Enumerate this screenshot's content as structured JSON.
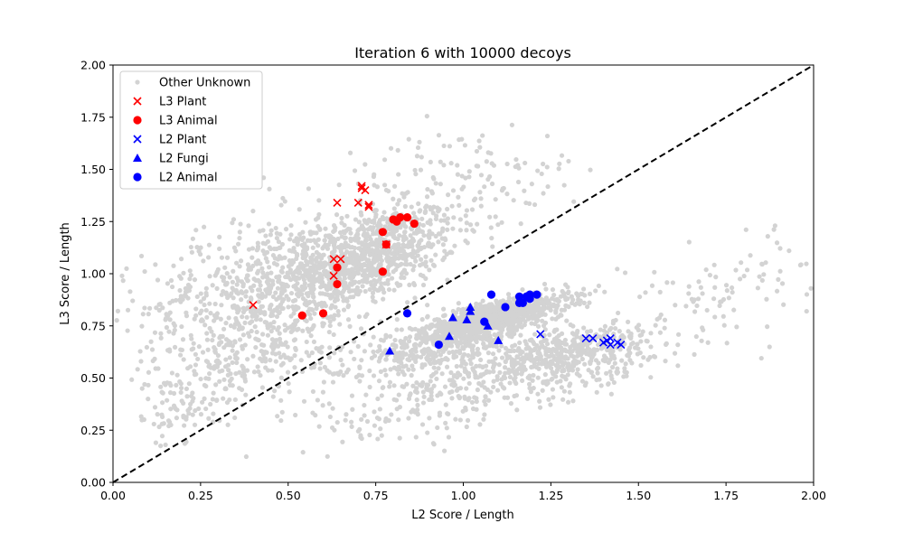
{
  "chart_data": {
    "type": "scatter",
    "title": "Iteration 6 with 10000 decoys",
    "xlabel": "L2 Score / Length",
    "ylabel": "L3 Score / Length",
    "xlim": [
      0,
      2
    ],
    "ylim": [
      0,
      2
    ],
    "xticks": [
      "0.00",
      "0.25",
      "0.50",
      "0.75",
      "1.00",
      "1.25",
      "1.50",
      "1.75",
      "2.00"
    ],
    "yticks": [
      "0.00",
      "0.25",
      "0.50",
      "0.75",
      "1.00",
      "1.25",
      "1.50",
      "1.75",
      "2.00"
    ],
    "grid": false,
    "legend_position": "top-left",
    "reference_line": {
      "style": "dashed",
      "color": "#000000",
      "from": [
        0,
        0
      ],
      "to": [
        2,
        2
      ]
    },
    "series": [
      {
        "name": "Other Unknown",
        "marker": "circle-small",
        "color": "#d3d3d3",
        "clusters": [
          {
            "center": [
              0.72,
              1.08
            ],
            "spread": [
              0.13,
              0.12
            ],
            "count": 900,
            "corr": 0.5
          },
          {
            "center": [
              0.45,
              0.95
            ],
            "spread": [
              0.18,
              0.17
            ],
            "count": 600,
            "corr": 0.35
          },
          {
            "center": [
              0.38,
              0.62
            ],
            "spread": [
              0.15,
              0.15
            ],
            "count": 300,
            "corr": 0.4
          },
          {
            "center": [
              0.2,
              0.35
            ],
            "spread": [
              0.06,
              0.08
            ],
            "count": 50,
            "corr": 0.5
          },
          {
            "center": [
              1.1,
              0.8
            ],
            "spread": [
              0.1,
              0.05
            ],
            "count": 900,
            "corr": 0.7
          },
          {
            "center": [
              0.95,
              0.67
            ],
            "spread": [
              0.12,
              0.06
            ],
            "count": 400,
            "corr": 0.6
          },
          {
            "center": [
              1.3,
              0.62
            ],
            "spread": [
              0.12,
              0.07
            ],
            "count": 450,
            "corr": 0.4
          },
          {
            "center": [
              1.05,
              0.5
            ],
            "spread": [
              0.2,
              0.09
            ],
            "count": 280,
            "corr": 0.3
          },
          {
            "center": [
              1.75,
              0.9
            ],
            "spread": [
              0.17,
              0.14
            ],
            "count": 100,
            "corr": 0.5
          },
          {
            "center": [
              1.0,
              1.45
            ],
            "spread": [
              0.18,
              0.12
            ],
            "count": 120,
            "corr": 0.2
          },
          {
            "center": [
              0.85,
              0.32
            ],
            "spread": [
              0.18,
              0.08
            ],
            "count": 90,
            "corr": 0.2
          }
        ],
        "points": [
          [
            0.08,
            0.58
          ],
          [
            0.1,
            0.4
          ],
          [
            0.12,
            0.36
          ],
          [
            0.14,
            0.28
          ],
          [
            0.15,
            0.18
          ],
          [
            1.98,
            0.82
          ],
          [
            1.93,
            1.11
          ],
          [
            1.89,
            1.23
          ],
          [
            1.5,
            0.73
          ],
          [
            1.52,
            0.91
          ],
          [
            0.43,
            1.46
          ],
          [
            1.24,
            1.66
          ]
        ]
      },
      {
        "name": "L3 Plant",
        "marker": "x",
        "color": "#ff0000",
        "points": [
          [
            0.4,
            0.85
          ],
          [
            0.63,
            0.99
          ],
          [
            0.63,
            1.07
          ],
          [
            0.65,
            1.07
          ],
          [
            0.64,
            1.34
          ],
          [
            0.7,
            1.34
          ],
          [
            0.71,
            1.41
          ],
          [
            0.71,
            1.42
          ],
          [
            0.72,
            1.4
          ],
          [
            0.73,
            1.32
          ],
          [
            0.73,
            1.33
          ],
          [
            0.78,
            1.14
          ]
        ]
      },
      {
        "name": "L3 Animal",
        "marker": "circle",
        "color": "#ff0000",
        "points": [
          [
            0.54,
            0.8
          ],
          [
            0.6,
            0.81
          ],
          [
            0.64,
            0.95
          ],
          [
            0.64,
            1.03
          ],
          [
            0.77,
            1.01
          ],
          [
            0.77,
            1.2
          ],
          [
            0.78,
            1.14
          ],
          [
            0.8,
            1.26
          ],
          [
            0.81,
            1.25
          ],
          [
            0.82,
            1.27
          ],
          [
            0.84,
            1.27
          ],
          [
            0.86,
            1.24
          ]
        ]
      },
      {
        "name": "L2 Plant",
        "marker": "x",
        "color": "#0000ff",
        "points": [
          [
            1.22,
            0.71
          ],
          [
            1.35,
            0.69
          ],
          [
            1.37,
            0.69
          ],
          [
            1.4,
            0.67
          ],
          [
            1.41,
            0.68
          ],
          [
            1.42,
            0.69
          ],
          [
            1.42,
            0.66
          ],
          [
            1.44,
            0.67
          ],
          [
            1.45,
            0.66
          ]
        ]
      },
      {
        "name": "L2 Fungi",
        "marker": "triangle",
        "color": "#0000ff",
        "points": [
          [
            0.79,
            0.63
          ],
          [
            0.96,
            0.7
          ],
          [
            0.97,
            0.79
          ],
          [
            1.01,
            0.78
          ],
          [
            1.02,
            0.82
          ],
          [
            1.02,
            0.84
          ],
          [
            1.07,
            0.75
          ],
          [
            1.1,
            0.68
          ]
        ]
      },
      {
        "name": "L2 Animal",
        "marker": "circle",
        "color": "#0000ff",
        "points": [
          [
            0.84,
            0.81
          ],
          [
            0.93,
            0.66
          ],
          [
            1.06,
            0.77
          ],
          [
            1.08,
            0.9
          ],
          [
            1.12,
            0.84
          ],
          [
            1.16,
            0.86
          ],
          [
            1.16,
            0.89
          ],
          [
            1.17,
            0.86
          ],
          [
            1.18,
            0.89
          ],
          [
            1.19,
            0.88
          ],
          [
            1.19,
            0.9
          ],
          [
            1.21,
            0.9
          ]
        ]
      }
    ]
  }
}
